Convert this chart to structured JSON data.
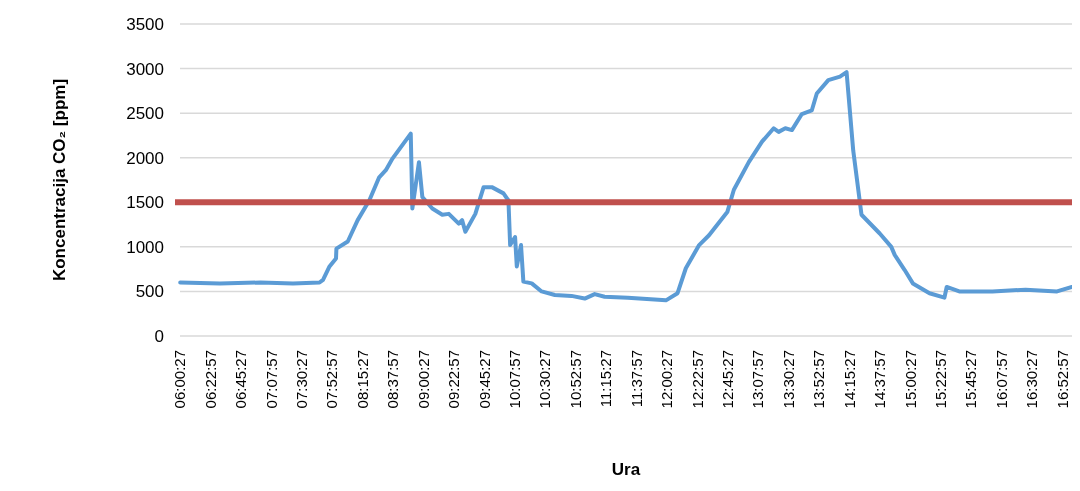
{
  "chart_data": {
    "type": "line",
    "xlabel": "Ura",
    "ylabel": "Koncentracija CO₂ [ppm]",
    "xlim": [
      6.0075,
      17.0
    ],
    "xticks": [
      {
        "value": 6.0075,
        "label": "06:00:27"
      },
      {
        "value": 6.3825,
        "label": "06:22:57"
      },
      {
        "value": 6.7575,
        "label": "06:45:27"
      },
      {
        "value": 7.1325,
        "label": "07:07:57"
      },
      {
        "value": 7.5075,
        "label": "07:30:27"
      },
      {
        "value": 7.8825,
        "label": "07:52:57"
      },
      {
        "value": 8.2575,
        "label": "08:15:27"
      },
      {
        "value": 8.6325,
        "label": "08:37:57"
      },
      {
        "value": 9.0075,
        "label": "09:00:27"
      },
      {
        "value": 9.3825,
        "label": "09:22:57"
      },
      {
        "value": 9.7575,
        "label": "09:45:27"
      },
      {
        "value": 10.1325,
        "label": "10:07:57"
      },
      {
        "value": 10.5075,
        "label": "10:30:27"
      },
      {
        "value": 10.8825,
        "label": "10:52:57"
      },
      {
        "value": 11.2575,
        "label": "11:15:27"
      },
      {
        "value": 11.6325,
        "label": "11:37:57"
      },
      {
        "value": 12.0075,
        "label": "12:00:27"
      },
      {
        "value": 12.3825,
        "label": "12:22:57"
      },
      {
        "value": 12.7575,
        "label": "12:45:27"
      },
      {
        "value": 13.1325,
        "label": "13:07:57"
      },
      {
        "value": 13.5075,
        "label": "13:30:27"
      },
      {
        "value": 13.8825,
        "label": "13:52:57"
      },
      {
        "value": 14.2575,
        "label": "14:15:27"
      },
      {
        "value": 14.6325,
        "label": "14:37:57"
      },
      {
        "value": 15.0075,
        "label": "15:00:27"
      },
      {
        "value": 15.3825,
        "label": "15:22:57"
      },
      {
        "value": 15.7575,
        "label": "15:45:27"
      },
      {
        "value": 16.1325,
        "label": "16:07:57"
      },
      {
        "value": 16.5075,
        "label": "16:30:27"
      },
      {
        "value": 16.8825,
        "label": "16:52:57"
      }
    ],
    "ylim": [
      0,
      3500
    ],
    "yticks": [
      0,
      500,
      1000,
      1500,
      2000,
      2500,
      3000,
      3500
    ],
    "grid": "y",
    "line_style": "solid",
    "marker": "none",
    "ref_lines": [
      {
        "axis": "y",
        "value": 1500,
        "color": "#c0504d"
      }
    ],
    "series": [
      {
        "color": "#5b9bd5",
        "x": [
          6.01,
          6.5,
          7.0,
          7.4,
          7.727,
          7.77,
          7.85,
          7.93,
          7.935,
          8.075,
          8.197,
          8.34,
          8.462,
          8.544,
          8.626,
          8.851,
          8.871,
          8.952,
          8.994,
          9.117,
          9.24,
          9.32,
          9.443,
          9.484,
          9.524,
          9.647,
          9.749,
          9.85,
          9.994,
          10.055,
          10.076,
          10.137,
          10.158,
          10.21,
          10.239,
          10.342,
          10.464,
          10.627,
          10.832,
          10.995,
          11.118,
          11.24,
          11.526,
          11.996,
          12.139,
          12.241,
          12.405,
          12.527,
          12.752,
          12.833,
          13.017,
          13.18,
          13.324,
          13.385,
          13.467,
          13.548,
          13.671,
          13.793,
          13.855,
          13.997,
          14.141,
          14.222,
          14.304,
          14.406,
          14.631,
          14.773,
          14.815,
          14.938,
          15.039,
          15.244,
          15.428,
          15.456,
          15.611,
          16.02,
          16.428,
          16.816,
          16.999
        ],
        "values": [
          600,
          590,
          600,
          590,
          600,
          630,
          780,
          870,
          980,
          1060,
          1300,
          1520,
          1780,
          1860,
          1990,
          2270,
          1430,
          1950,
          1560,
          1430,
          1360,
          1370,
          1260,
          1300,
          1170,
          1370,
          1670,
          1670,
          1600,
          1520,
          1020,
          1110,
          780,
          1020,
          610,
          590,
          500,
          460,
          450,
          420,
          470,
          440,
          430,
          400,
          480,
          760,
          1020,
          1130,
          1390,
          1640,
          1950,
          2180,
          2330,
          2290,
          2330,
          2310,
          2490,
          2530,
          2720,
          2870,
          2910,
          2960,
          2080,
          1360,
          1150,
          1000,
          910,
          740,
          590,
          480,
          430,
          550,
          500,
          500,
          520,
          500,
          550
        ]
      }
    ]
  }
}
